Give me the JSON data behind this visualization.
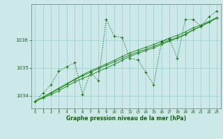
{
  "xlabel": "Graphe pression niveau de la mer (hPa)",
  "hours": [
    0,
    1,
    2,
    3,
    4,
    5,
    6,
    7,
    8,
    9,
    10,
    11,
    12,
    13,
    14,
    15,
    16,
    17,
    18,
    19,
    20,
    21,
    22,
    23
  ],
  "series_jagged": [
    1033.8,
    1034.1,
    1034.4,
    1034.9,
    1035.05,
    1035.2,
    1034.05,
    1034.85,
    1034.55,
    1036.75,
    1036.15,
    1036.1,
    1035.35,
    1035.3,
    1034.85,
    1034.4,
    1035.95,
    1036.05,
    1035.35,
    1036.75,
    1036.75,
    1036.5,
    1036.85,
    1037.05
  ],
  "series_smooth1": [
    1033.8,
    1033.95,
    1034.1,
    1034.25,
    1034.42,
    1034.58,
    1034.72,
    1034.85,
    1034.98,
    1035.1,
    1035.22,
    1035.35,
    1035.48,
    1035.58,
    1035.68,
    1035.78,
    1035.9,
    1036.0,
    1036.1,
    1036.22,
    1036.38,
    1036.5,
    1036.65,
    1036.8
  ],
  "series_smooth2": [
    1033.8,
    1033.93,
    1034.05,
    1034.18,
    1034.35,
    1034.5,
    1034.63,
    1034.75,
    1034.88,
    1035.0,
    1035.13,
    1035.28,
    1035.42,
    1035.53,
    1035.63,
    1035.73,
    1035.85,
    1035.97,
    1036.08,
    1036.2,
    1036.37,
    1036.5,
    1036.65,
    1036.8
  ],
  "series_smooth3": [
    1033.8,
    1033.96,
    1034.12,
    1034.28,
    1034.44,
    1034.6,
    1034.76,
    1034.9,
    1035.02,
    1035.15,
    1035.28,
    1035.42,
    1035.55,
    1035.65,
    1035.75,
    1035.85,
    1035.97,
    1036.08,
    1036.18,
    1036.3,
    1036.45,
    1036.55,
    1036.68,
    1036.82
  ],
  "color_jagged": "#1a6b1a",
  "color_smooth": "#2d8b2d",
  "bg_color": "#cce8e8",
  "grid_color": "#99cccc",
  "text_color": "#1a5c1a",
  "ylim": [
    1033.55,
    1037.3
  ],
  "yticks": [
    1034,
    1035,
    1036
  ],
  "xlim": [
    -0.5,
    23.5
  ]
}
